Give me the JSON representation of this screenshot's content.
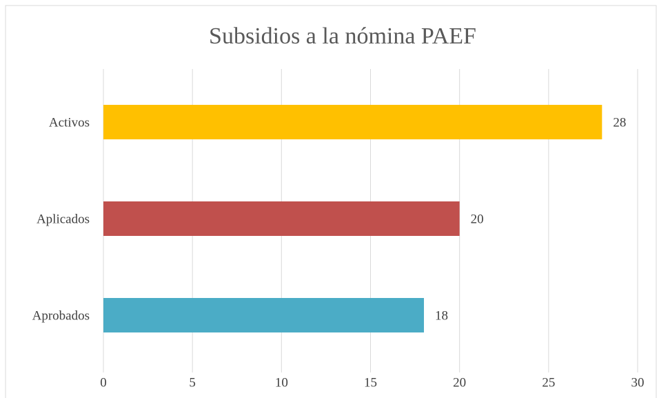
{
  "chart_data": {
    "type": "hbar",
    "title": "Subsidios a la nómina PAEF",
    "categories": [
      "Activos",
      "Aplicados",
      "Aprobados"
    ],
    "values": [
      28,
      20,
      18
    ],
    "colors": [
      "#ffc000",
      "#c0504d",
      "#4bacc6"
    ],
    "xlim": [
      0,
      30
    ],
    "xticks": [
      0,
      5,
      10,
      15,
      20,
      25,
      30
    ],
    "grid": true
  }
}
